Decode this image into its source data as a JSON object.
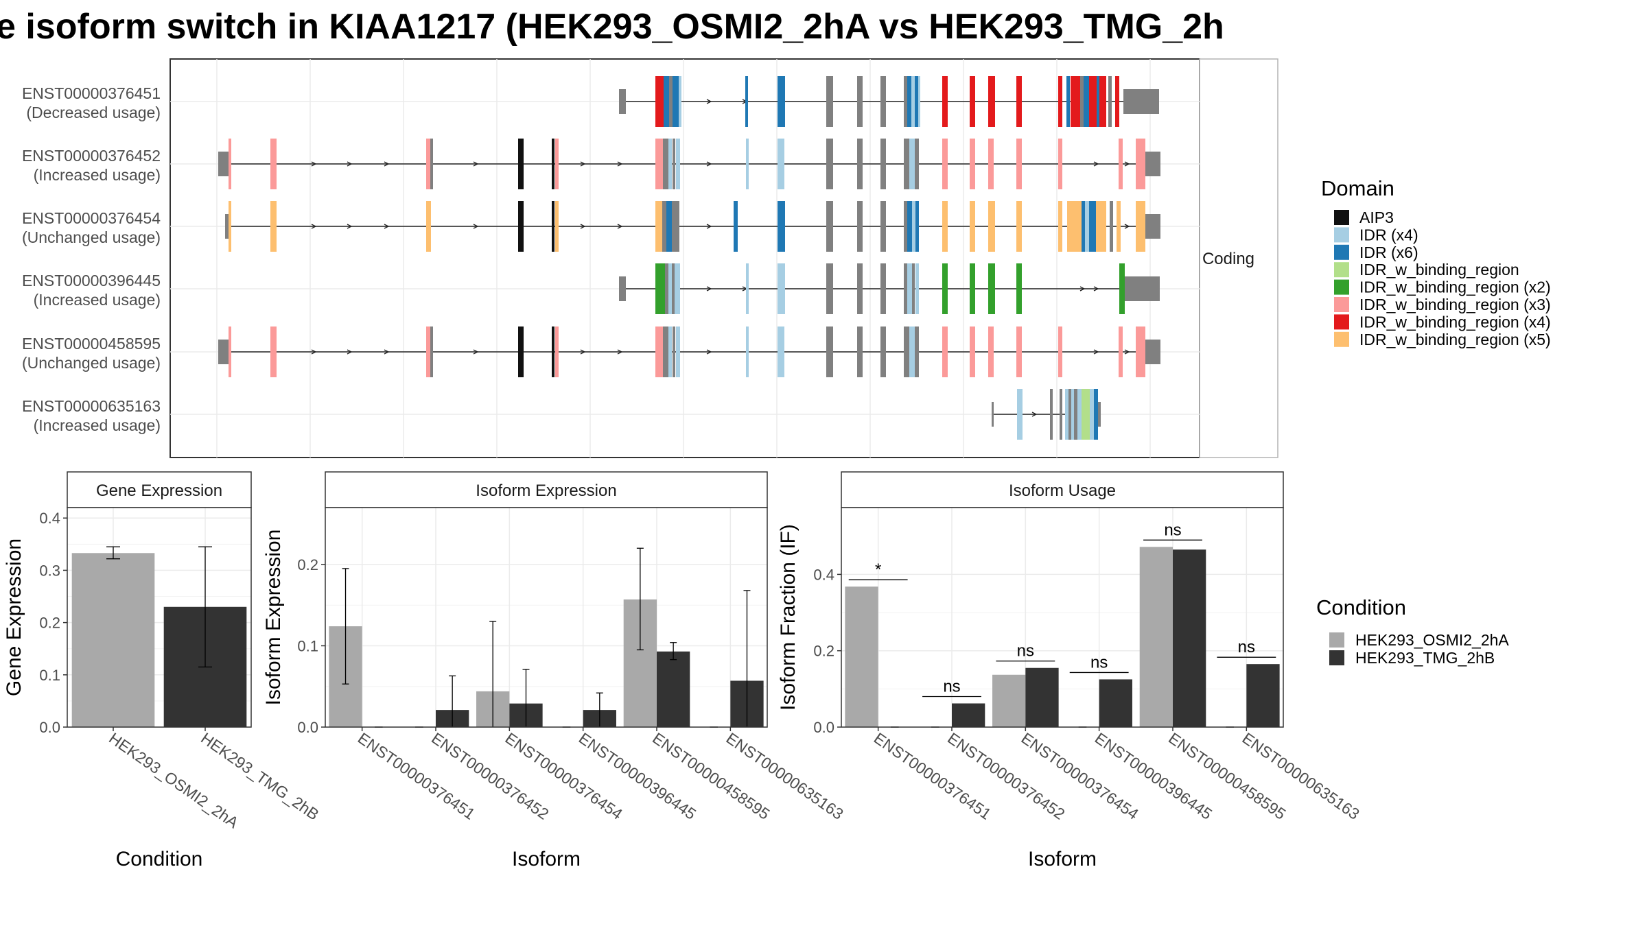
{
  "title": "e isoform switch in KIAA1217 (HEK293_OSMI2_2hA vs HEK293_TMG_2h",
  "structure_panel": {
    "strip_label": "Coding",
    "isoforms": [
      {
        "id": "ENST00000376451",
        "usage": "(Decreased usage)"
      },
      {
        "id": "ENST00000376452",
        "usage": "(Increased usage)"
      },
      {
        "id": "ENST00000376454",
        "usage": "(Unchanged usage)"
      },
      {
        "id": "ENST00000396445",
        "usage": "(Increased usage)"
      },
      {
        "id": "ENST00000458595",
        "usage": "(Unchanged usage)"
      },
      {
        "id": "ENST00000635163",
        "usage": "(Increased usage)"
      }
    ]
  },
  "domain_legend": {
    "title": "Domain",
    "items": [
      {
        "label": "AIP3",
        "color": "#111111"
      },
      {
        "label": "IDR (x4)",
        "color": "#a6cee3"
      },
      {
        "label": "IDR (x6)",
        "color": "#1f78b4"
      },
      {
        "label": "IDR_w_binding_region",
        "color": "#b2df8a"
      },
      {
        "label": "IDR_w_binding_region (x2)",
        "color": "#33a02c"
      },
      {
        "label": "IDR_w_binding_region (x3)",
        "color": "#fb9a99"
      },
      {
        "label": "IDR_w_binding_region (x4)",
        "color": "#e31a1c"
      },
      {
        "label": "IDR_w_binding_region (x5)",
        "color": "#fdbf6f"
      }
    ]
  },
  "condition_legend": {
    "title": "Condition",
    "items": [
      {
        "label": "HEK293_OSMI2_2hA",
        "color": "#a9a9a9"
      },
      {
        "label": "HEK293_TMG_2hB",
        "color": "#333333"
      }
    ]
  },
  "chart_data": [
    {
      "type": "bar",
      "title": "Gene Expression",
      "xlabel": "Condition",
      "ylabel": "Gene Expression",
      "ylim": [
        0,
        0.42
      ],
      "yticks": [
        "0.0",
        "0.1",
        "0.2",
        "0.3",
        "0.4"
      ],
      "categories": [
        "HEK293_OSMI2_2hA",
        "HEK293_TMG_2hB"
      ],
      "values": [
        0.333,
        0.23
      ],
      "error_low": [
        0.322,
        0.115
      ],
      "error_high": [
        0.345,
        0.345
      ]
    },
    {
      "type": "bar",
      "title": "Isoform Expression",
      "xlabel": "Isoform",
      "ylabel": "Isoform Expression",
      "ylim": [
        0,
        0.27
      ],
      "yticks": [
        "0.0",
        "0.1",
        "0.2"
      ],
      "categories": [
        "ENST00000376451",
        "ENST00000376452",
        "ENST00000376454",
        "ENST00000396445",
        "ENST00000458595",
        "ENST00000635163"
      ],
      "series": [
        {
          "name": "HEK293_OSMI2_2hA",
          "values": [
            0.124,
            0,
            0.044,
            0,
            0.157,
            0
          ],
          "error_low": [
            0.053,
            null,
            null,
            null,
            0.095,
            null
          ],
          "error_high": [
            0.195,
            null,
            0.13,
            null,
            0.22,
            null
          ]
        },
        {
          "name": "HEK293_TMG_2hB",
          "values": [
            0,
            0.021,
            0.029,
            0.021,
            0.093,
            0.057
          ],
          "error_low": [
            null,
            null,
            null,
            null,
            0.083,
            null
          ],
          "error_high": [
            null,
            0.063,
            0.071,
            0.042,
            0.104,
            0.168
          ]
        }
      ]
    },
    {
      "type": "bar",
      "title": "Isoform Usage",
      "xlabel": "Isoform",
      "ylabel": "Isoform Fraction (IF)",
      "ylim": [
        0,
        0.575
      ],
      "yticks": [
        "0.0",
        "0.2",
        "0.4"
      ],
      "categories": [
        "ENST00000376451",
        "ENST00000376452",
        "ENST00000376454",
        "ENST00000396445",
        "ENST00000458595",
        "ENST00000635163"
      ],
      "series": [
        {
          "name": "HEK293_OSMI2_2hA",
          "values": [
            0.368,
            0,
            0.137,
            0,
            0.472,
            0
          ]
        },
        {
          "name": "HEK293_TMG_2hB",
          "values": [
            0,
            0.062,
            0.155,
            0.125,
            0.465,
            0.165
          ]
        }
      ],
      "significance": [
        "*",
        "ns",
        "ns",
        "ns",
        "ns",
        "ns"
      ]
    }
  ]
}
